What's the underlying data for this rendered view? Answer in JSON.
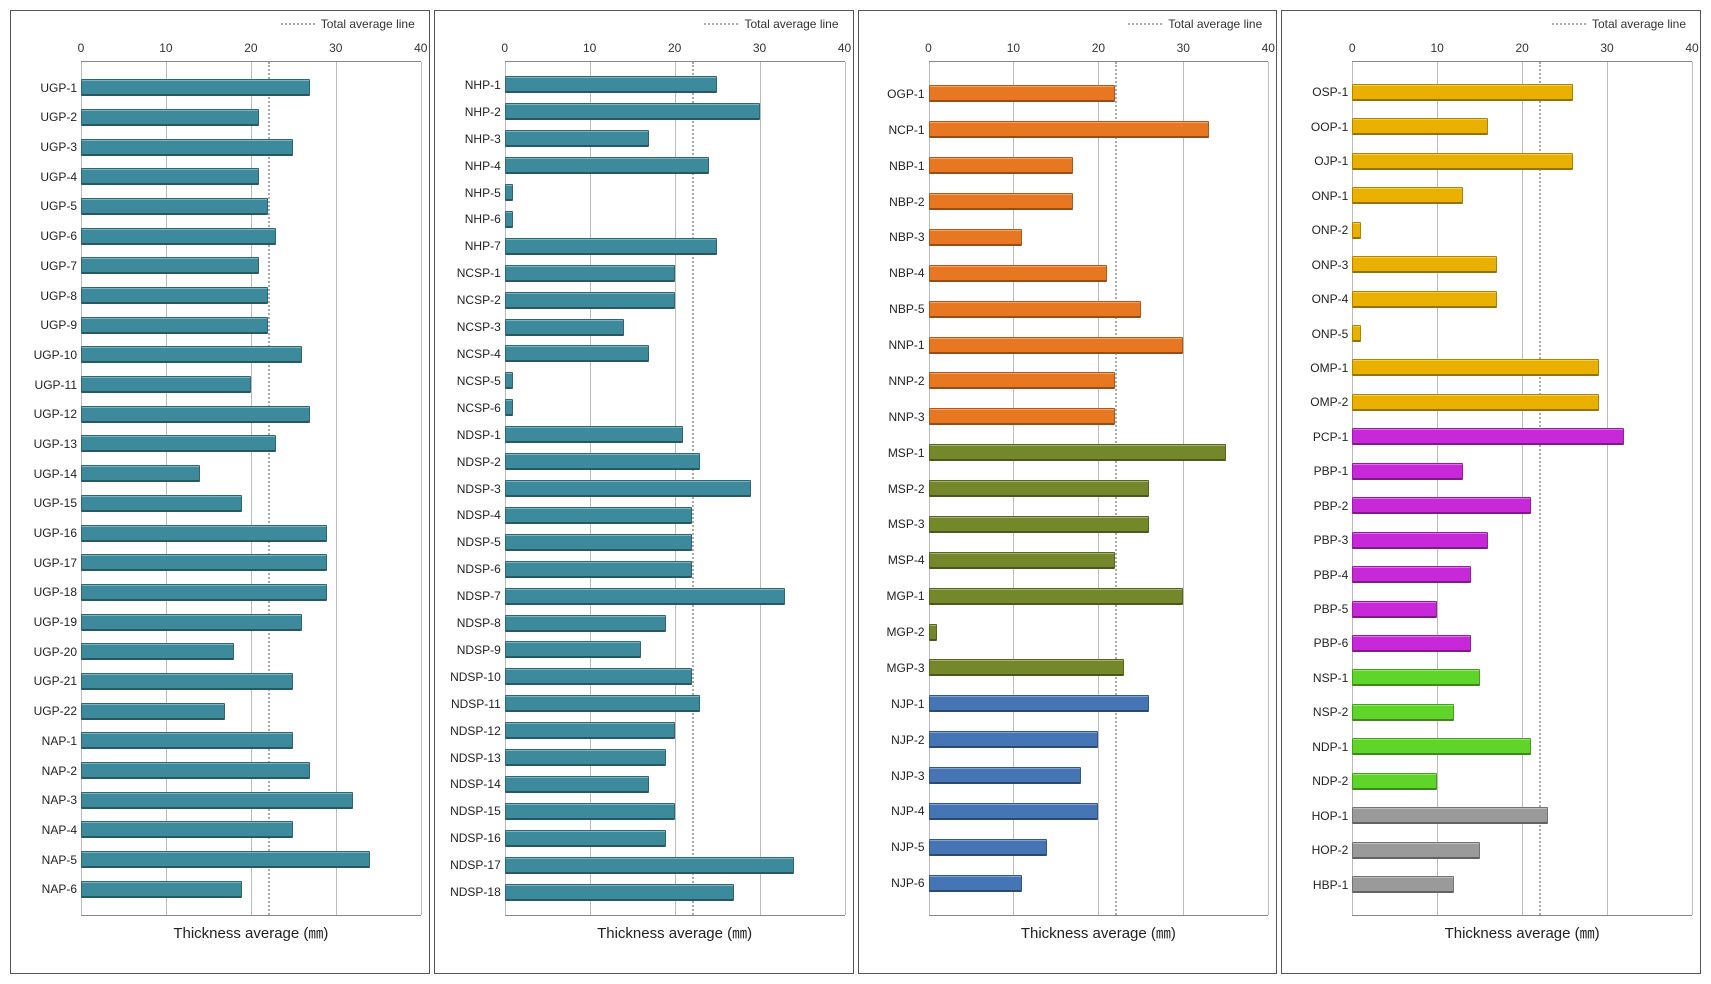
{
  "legend_text": "Total average line",
  "xlabel": "Thickness average (㎜)",
  "xmax": 40,
  "ticks": [
    0,
    10,
    20,
    30,
    40
  ],
  "avg_value": 22,
  "panels": [
    {
      "bars": [
        {
          "label": "UGP-1",
          "value": 27,
          "color": "#3d8a9c"
        },
        {
          "label": "UGP-2",
          "value": 21,
          "color": "#3d8a9c"
        },
        {
          "label": "UGP-3",
          "value": 25,
          "color": "#3d8a9c"
        },
        {
          "label": "UGP-4",
          "value": 21,
          "color": "#3d8a9c"
        },
        {
          "label": "UGP-5",
          "value": 22,
          "color": "#3d8a9c"
        },
        {
          "label": "UGP-6",
          "value": 23,
          "color": "#3d8a9c"
        },
        {
          "label": "UGP-7",
          "value": 21,
          "color": "#3d8a9c"
        },
        {
          "label": "UGP-8",
          "value": 22,
          "color": "#3d8a9c"
        },
        {
          "label": "UGP-9",
          "value": 22,
          "color": "#3d8a9c"
        },
        {
          "label": "UGP-10",
          "value": 26,
          "color": "#3d8a9c"
        },
        {
          "label": "UGP-11",
          "value": 20,
          "color": "#3d8a9c"
        },
        {
          "label": "UGP-12",
          "value": 27,
          "color": "#3d8a9c"
        },
        {
          "label": "UGP-13",
          "value": 23,
          "color": "#3d8a9c"
        },
        {
          "label": "UGP-14",
          "value": 14,
          "color": "#3d8a9c"
        },
        {
          "label": "UGP-15",
          "value": 19,
          "color": "#3d8a9c"
        },
        {
          "label": "UGP-16",
          "value": 29,
          "color": "#3d8a9c"
        },
        {
          "label": "UGP-17",
          "value": 29,
          "color": "#3d8a9c"
        },
        {
          "label": "UGP-18",
          "value": 29,
          "color": "#3d8a9c"
        },
        {
          "label": "UGP-19",
          "value": 26,
          "color": "#3d8a9c"
        },
        {
          "label": "UGP-20",
          "value": 18,
          "color": "#3d8a9c"
        },
        {
          "label": "UGP-21",
          "value": 25,
          "color": "#3d8a9c"
        },
        {
          "label": "UGP-22",
          "value": 17,
          "color": "#3d8a9c"
        },
        {
          "label": "NAP-1",
          "value": 25,
          "color": "#3d8a9c"
        },
        {
          "label": "NAP-2",
          "value": 27,
          "color": "#3d8a9c"
        },
        {
          "label": "NAP-3",
          "value": 32,
          "color": "#3d8a9c"
        },
        {
          "label": "NAP-4",
          "value": 25,
          "color": "#3d8a9c"
        },
        {
          "label": "NAP-5",
          "value": 34,
          "color": "#3d8a9c"
        },
        {
          "label": "NAP-6",
          "value": 19,
          "color": "#3d8a9c"
        }
      ]
    },
    {
      "bars": [
        {
          "label": "NHP-1",
          "value": 25,
          "color": "#3d8a9c"
        },
        {
          "label": "NHP-2",
          "value": 30,
          "color": "#3d8a9c"
        },
        {
          "label": "NHP-3",
          "value": 17,
          "color": "#3d8a9c"
        },
        {
          "label": "NHP-4",
          "value": 24,
          "color": "#3d8a9c"
        },
        {
          "label": "NHP-5",
          "value": 1,
          "color": "#3d8a9c"
        },
        {
          "label": "NHP-6",
          "value": 1,
          "color": "#3d8a9c"
        },
        {
          "label": "NHP-7",
          "value": 25,
          "color": "#3d8a9c"
        },
        {
          "label": "NCSP-1",
          "value": 20,
          "color": "#3d8a9c"
        },
        {
          "label": "NCSP-2",
          "value": 20,
          "color": "#3d8a9c"
        },
        {
          "label": "NCSP-3",
          "value": 14,
          "color": "#3d8a9c"
        },
        {
          "label": "NCSP-4",
          "value": 17,
          "color": "#3d8a9c"
        },
        {
          "label": "NCSP-5",
          "value": 1,
          "color": "#3d8a9c"
        },
        {
          "label": "NCSP-6",
          "value": 1,
          "color": "#3d8a9c"
        },
        {
          "label": "NDSP-1",
          "value": 21,
          "color": "#3d8a9c"
        },
        {
          "label": "NDSP-2",
          "value": 23,
          "color": "#3d8a9c"
        },
        {
          "label": "NDSP-3",
          "value": 29,
          "color": "#3d8a9c"
        },
        {
          "label": "NDSP-4",
          "value": 22,
          "color": "#3d8a9c"
        },
        {
          "label": "NDSP-5",
          "value": 22,
          "color": "#3d8a9c"
        },
        {
          "label": "NDSP-6",
          "value": 22,
          "color": "#3d8a9c"
        },
        {
          "label": "NDSP-7",
          "value": 33,
          "color": "#3d8a9c"
        },
        {
          "label": "NDSP-8",
          "value": 19,
          "color": "#3d8a9c"
        },
        {
          "label": "NDSP-9",
          "value": 16,
          "color": "#3d8a9c"
        },
        {
          "label": "NDSP-10",
          "value": 22,
          "color": "#3d8a9c"
        },
        {
          "label": "NDSP-11",
          "value": 23,
          "color": "#3d8a9c"
        },
        {
          "label": "NDSP-12",
          "value": 20,
          "color": "#3d8a9c"
        },
        {
          "label": "NDSP-13",
          "value": 19,
          "color": "#3d8a9c"
        },
        {
          "label": "NDSP-14",
          "value": 17,
          "color": "#3d8a9c"
        },
        {
          "label": "NDSP-15",
          "value": 20,
          "color": "#3d8a9c"
        },
        {
          "label": "NDSP-16",
          "value": 19,
          "color": "#3d8a9c"
        },
        {
          "label": "NDSP-17",
          "value": 34,
          "color": "#3d8a9c"
        },
        {
          "label": "NDSP-18",
          "value": 27,
          "color": "#3d8a9c"
        }
      ]
    },
    {
      "bars": [
        {
          "label": "OGP-1",
          "value": 22,
          "color": "#e87722"
        },
        {
          "label": "NCP-1",
          "value": 33,
          "color": "#e87722"
        },
        {
          "label": "NBP-1",
          "value": 17,
          "color": "#e87722"
        },
        {
          "label": "NBP-2",
          "value": 17,
          "color": "#e87722"
        },
        {
          "label": "NBP-3",
          "value": 11,
          "color": "#e87722"
        },
        {
          "label": "NBP-4",
          "value": 21,
          "color": "#e87722"
        },
        {
          "label": "NBP-5",
          "value": 25,
          "color": "#e87722"
        },
        {
          "label": "NNP-1",
          "value": 30,
          "color": "#e87722"
        },
        {
          "label": "NNP-2",
          "value": 22,
          "color": "#e87722"
        },
        {
          "label": "NNP-3",
          "value": 22,
          "color": "#e87722"
        },
        {
          "label": "MSP-1",
          "value": 35,
          "color": "#74872a"
        },
        {
          "label": "MSP-2",
          "value": 26,
          "color": "#74872a"
        },
        {
          "label": "MSP-3",
          "value": 26,
          "color": "#74872a"
        },
        {
          "label": "MSP-4",
          "value": 22,
          "color": "#74872a"
        },
        {
          "label": "MGP-1",
          "value": 30,
          "color": "#74872a"
        },
        {
          "label": "MGP-2",
          "value": 1,
          "color": "#74872a"
        },
        {
          "label": "MGP-3",
          "value": 23,
          "color": "#74872a"
        },
        {
          "label": "NJP-1",
          "value": 26,
          "color": "#4575b4"
        },
        {
          "label": "NJP-2",
          "value": 20,
          "color": "#4575b4"
        },
        {
          "label": "NJP-3",
          "value": 18,
          "color": "#4575b4"
        },
        {
          "label": "NJP-4",
          "value": 20,
          "color": "#4575b4"
        },
        {
          "label": "NJP-5",
          "value": 14,
          "color": "#4575b4"
        },
        {
          "label": "NJP-6",
          "value": 11,
          "color": "#4575b4"
        }
      ]
    },
    {
      "bars": [
        {
          "label": "OSP-1",
          "value": 26,
          "color": "#e9b000"
        },
        {
          "label": "OOP-1",
          "value": 16,
          "color": "#e9b000"
        },
        {
          "label": "OJP-1",
          "value": 26,
          "color": "#e9b000"
        },
        {
          "label": "ONP-1",
          "value": 13,
          "color": "#e9b000"
        },
        {
          "label": "ONP-2",
          "value": 1,
          "color": "#e9b000"
        },
        {
          "label": "ONP-3",
          "value": 17,
          "color": "#e9b000"
        },
        {
          "label": "ONP-4",
          "value": 17,
          "color": "#e9b000"
        },
        {
          "label": "ONP-5",
          "value": 1,
          "color": "#e9b000"
        },
        {
          "label": "OMP-1",
          "value": 29,
          "color": "#e9b000"
        },
        {
          "label": "OMP-2",
          "value": 29,
          "color": "#e9b000"
        },
        {
          "label": "PCP-1",
          "value": 32,
          "color": "#c728d8"
        },
        {
          "label": "PBP-1",
          "value": 13,
          "color": "#c728d8"
        },
        {
          "label": "PBP-2",
          "value": 21,
          "color": "#c728d8"
        },
        {
          "label": "PBP-3",
          "value": 16,
          "color": "#c728d8"
        },
        {
          "label": "PBP-4",
          "value": 14,
          "color": "#c728d8"
        },
        {
          "label": "PBP-5",
          "value": 10,
          "color": "#c728d8"
        },
        {
          "label": "PBP-6",
          "value": 14,
          "color": "#c728d8"
        },
        {
          "label": "NSP-1",
          "value": 15,
          "color": "#5fd52a"
        },
        {
          "label": "NSP-2",
          "value": 12,
          "color": "#5fd52a"
        },
        {
          "label": "NDP-1",
          "value": 21,
          "color": "#5fd52a"
        },
        {
          "label": "NDP-2",
          "value": 10,
          "color": "#5fd52a"
        },
        {
          "label": "HOP-1",
          "value": 23,
          "color": "#9a9a9a"
        },
        {
          "label": "HOP-2",
          "value": 15,
          "color": "#9a9a9a"
        },
        {
          "label": "HBP-1",
          "value": 12,
          "color": "#9a9a9a"
        }
      ]
    }
  ]
}
